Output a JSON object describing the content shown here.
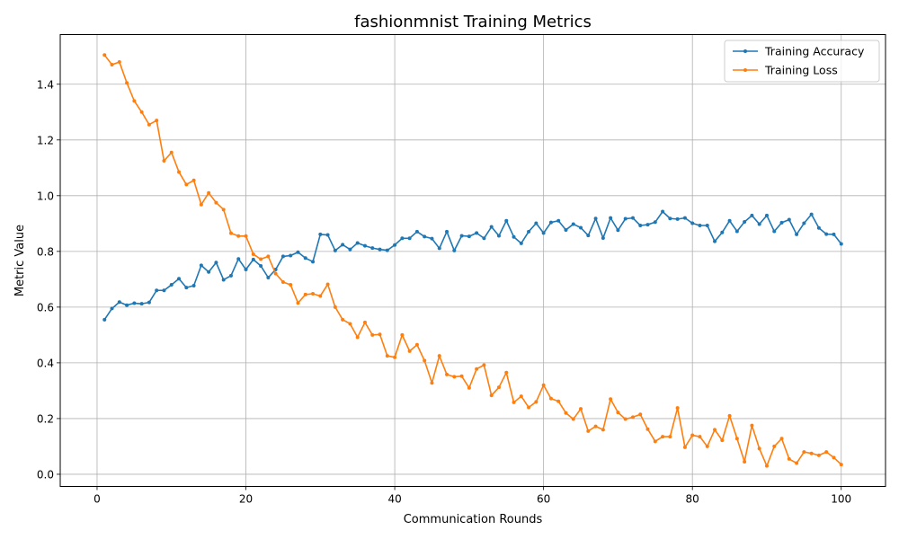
{
  "chart_data": {
    "type": "line",
    "title": "fashionmnist Training Metrics",
    "xlabel": "Communication Rounds",
    "ylabel": "Metric Value",
    "xlim": [
      -4.95,
      105.95
    ],
    "ylim": [
      -0.0437,
      1.5782
    ],
    "xticks": [
      0,
      20,
      40,
      60,
      80,
      100
    ],
    "yticks": [
      0.0,
      0.2,
      0.4,
      0.6,
      0.8,
      1.0,
      1.2,
      1.4
    ],
    "grid": true,
    "legend_position": "top-right",
    "x": [
      1,
      2,
      3,
      4,
      5,
      6,
      7,
      8,
      9,
      10,
      11,
      12,
      13,
      14,
      15,
      16,
      17,
      18,
      19,
      20,
      21,
      22,
      23,
      24,
      25,
      26,
      27,
      28,
      29,
      30,
      31,
      32,
      33,
      34,
      35,
      36,
      37,
      38,
      39,
      40,
      41,
      42,
      43,
      44,
      45,
      46,
      47,
      48,
      49,
      50,
      51,
      52,
      53,
      54,
      55,
      56,
      57,
      58,
      59,
      60,
      61,
      62,
      63,
      64,
      65,
      66,
      67,
      68,
      69,
      70,
      71,
      72,
      73,
      74,
      75,
      76,
      77,
      78,
      79,
      80,
      81,
      82,
      83,
      84,
      85,
      86,
      87,
      88,
      89,
      90,
      91,
      92,
      93,
      94,
      95,
      96,
      97,
      98,
      99,
      100
    ],
    "series": [
      {
        "name": "Training Accuracy",
        "color": "#1f77b4",
        "values": [
          0.555,
          0.595,
          0.618,
          0.607,
          0.614,
          0.612,
          0.617,
          0.66,
          0.66,
          0.68,
          0.702,
          0.67,
          0.677,
          0.75,
          0.726,
          0.76,
          0.698,
          0.713,
          0.773,
          0.735,
          0.771,
          0.748,
          0.706,
          0.735,
          0.782,
          0.785,
          0.797,
          0.776,
          0.763,
          0.861,
          0.859,
          0.803,
          0.824,
          0.807,
          0.83,
          0.82,
          0.812,
          0.807,
          0.804,
          0.823,
          0.847,
          0.847,
          0.871,
          0.853,
          0.846,
          0.811,
          0.871,
          0.803,
          0.856,
          0.854,
          0.866,
          0.847,
          0.888,
          0.856,
          0.91,
          0.852,
          0.829,
          0.871,
          0.901,
          0.866,
          0.904,
          0.91,
          0.877,
          0.898,
          0.885,
          0.857,
          0.918,
          0.848,
          0.92,
          0.876,
          0.917,
          0.92,
          0.893,
          0.896,
          0.905,
          0.943,
          0.918,
          0.916,
          0.92,
          0.901,
          0.893,
          0.893,
          0.836,
          0.868,
          0.91,
          0.872,
          0.906,
          0.929,
          0.898,
          0.929,
          0.872,
          0.903,
          0.914,
          0.861,
          0.901,
          0.933,
          0.884,
          0.862,
          0.861,
          0.827
        ]
      },
      {
        "name": "Training Loss",
        "color": "#ff7f0e",
        "values": [
          1.505,
          1.47,
          1.48,
          1.405,
          1.34,
          1.3,
          1.255,
          1.27,
          1.125,
          1.155,
          1.085,
          1.04,
          1.055,
          0.968,
          1.01,
          0.975,
          0.95,
          0.865,
          0.855,
          0.855,
          0.79,
          0.772,
          0.782,
          0.72,
          0.69,
          0.68,
          0.615,
          0.645,
          0.648,
          0.64,
          0.682,
          0.6,
          0.555,
          0.54,
          0.492,
          0.545,
          0.5,
          0.502,
          0.425,
          0.42,
          0.5,
          0.442,
          0.465,
          0.408,
          0.328,
          0.425,
          0.358,
          0.35,
          0.352,
          0.31,
          0.378,
          0.392,
          0.283,
          0.312,
          0.365,
          0.258,
          0.28,
          0.24,
          0.26,
          0.32,
          0.272,
          0.262,
          0.22,
          0.198,
          0.235,
          0.155,
          0.172,
          0.16,
          0.27,
          0.222,
          0.198,
          0.205,
          0.215,
          0.162,
          0.118,
          0.135,
          0.135,
          0.238,
          0.097,
          0.14,
          0.135,
          0.1,
          0.16,
          0.122,
          0.21,
          0.128,
          0.045,
          0.175,
          0.092,
          0.03,
          0.1,
          0.128,
          0.055,
          0.04,
          0.08,
          0.075,
          0.068,
          0.08,
          0.06,
          0.035
        ]
      }
    ]
  }
}
